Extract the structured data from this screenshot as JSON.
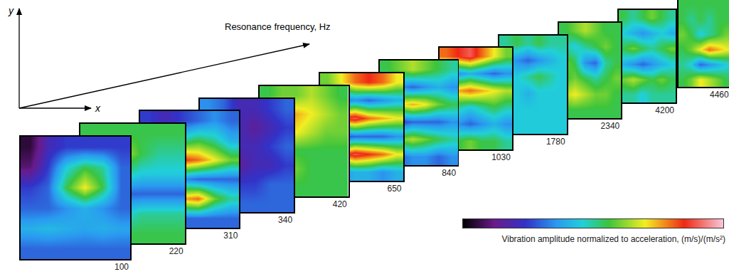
{
  "chart_data": {
    "type": "heatmap",
    "tick_labels": false,
    "x_label": "x",
    "y_label": "y",
    "depth_label": "Resonance frequency, Hz",
    "colorbar_label": "Vibration amplitude normalized to acceleration, (m/s)/(m/s²)",
    "color_range": [
      0,
      1
    ],
    "colorscale": [
      [
        0,
        "#000000"
      ],
      [
        0.12,
        "#6a1a8a"
      ],
      [
        0.24,
        "#3232c8"
      ],
      [
        0.36,
        "#2a9af0"
      ],
      [
        0.46,
        "#20d0d8"
      ],
      [
        0.56,
        "#3cc43c"
      ],
      [
        0.7,
        "#f2ee22"
      ],
      [
        0.85,
        "#f02814"
      ],
      [
        1,
        "#f8c8d8"
      ]
    ],
    "panels": [
      {
        "frequency": 100,
        "cells": [
          [
            0.05,
            0.2,
            0.25,
            0.25,
            0.25,
            0.25
          ],
          [
            0.1,
            0.25,
            0.45,
            0.55,
            0.5,
            0.3
          ],
          [
            0.25,
            0.3,
            0.55,
            0.7,
            0.55,
            0.3
          ],
          [
            0.3,
            0.3,
            0.35,
            0.4,
            0.35,
            0.3
          ],
          [
            0.4,
            0.42,
            0.4,
            0.38,
            0.4,
            0.38
          ],
          [
            0.3,
            0.3,
            0.3,
            0.3,
            0.3,
            0.3
          ]
        ]
      },
      {
        "frequency": 220,
        "cells": [
          [
            0.55,
            0.55,
            0.55,
            0.55,
            0.55,
            0.55
          ],
          [
            0.85,
            0.8,
            0.65,
            0.55,
            0.5,
            0.5
          ],
          [
            0.6,
            0.55,
            0.5,
            0.45,
            0.45,
            0.45
          ],
          [
            0.3,
            0.25,
            0.3,
            0.3,
            0.3,
            0.3
          ],
          [
            0.1,
            0.3,
            0.45,
            0.5,
            0.5,
            0.5
          ],
          [
            0.55,
            0.55,
            0.55,
            0.55,
            0.55,
            0.55
          ]
        ]
      },
      {
        "frequency": 310,
        "cells": [
          [
            0.25,
            0.2,
            0.25,
            0.3,
            0.35,
            0.3
          ],
          [
            0.35,
            0.4,
            0.5,
            0.55,
            0.5,
            0.4
          ],
          [
            0.7,
            0.8,
            0.85,
            0.8,
            0.7,
            0.6
          ],
          [
            0.35,
            0.3,
            0.35,
            0.3,
            0.3,
            0.3
          ],
          [
            0.55,
            0.6,
            0.75,
            0.8,
            0.6,
            0.5
          ],
          [
            0.3,
            0.3,
            0.3,
            0.3,
            0.3,
            0.3
          ]
        ]
      },
      {
        "frequency": 340,
        "cells": [
          [
            0.35,
            0.3,
            0.2,
            0.2,
            0.25,
            0.3
          ],
          [
            0.25,
            0.2,
            0.2,
            0.15,
            0.2,
            0.25
          ],
          [
            0.3,
            0.25,
            0.2,
            0.2,
            0.25,
            0.3
          ],
          [
            0.25,
            0.2,
            0.15,
            0.2,
            0.2,
            0.25
          ],
          [
            0.3,
            0.3,
            0.25,
            0.25,
            0.3,
            0.3
          ],
          [
            0.3,
            0.3,
            0.3,
            0.3,
            0.3,
            0.3
          ]
        ]
      },
      {
        "frequency": 420,
        "cells": [
          [
            0.55,
            0.6,
            0.6,
            0.65,
            0.6,
            0.55
          ],
          [
            0.7,
            0.8,
            0.75,
            0.7,
            0.65,
            0.6
          ],
          [
            0.65,
            0.7,
            0.7,
            0.65,
            0.6,
            0.6
          ],
          [
            0.55,
            0.6,
            0.55,
            0.55,
            0.55,
            0.55
          ],
          [
            0.6,
            0.65,
            0.6,
            0.55,
            0.55,
            0.55
          ],
          [
            0.55,
            0.55,
            0.55,
            0.55,
            0.55,
            0.55
          ]
        ]
      },
      {
        "frequency": 650,
        "cells": [
          [
            0.6,
            0.7,
            0.8,
            0.85,
            0.8,
            0.7
          ],
          [
            0.35,
            0.3,
            0.35,
            0.3,
            0.35,
            0.4
          ],
          [
            0.75,
            0.85,
            0.9,
            0.8,
            0.75,
            0.7
          ],
          [
            0.3,
            0.25,
            0.3,
            0.3,
            0.3,
            0.35
          ],
          [
            0.7,
            0.8,
            0.9,
            0.85,
            0.8,
            0.7
          ],
          [
            0.4,
            0.35,
            0.4,
            0.4,
            0.35,
            0.4
          ]
        ]
      },
      {
        "frequency": 840,
        "cells": [
          [
            0.55,
            0.6,
            0.65,
            0.6,
            0.55,
            0.5
          ],
          [
            0.3,
            0.35,
            0.3,
            0.35,
            0.4,
            0.35
          ],
          [
            0.6,
            0.7,
            0.75,
            0.7,
            0.6,
            0.55
          ],
          [
            0.1,
            0.25,
            0.3,
            0.3,
            0.3,
            0.35
          ],
          [
            0.55,
            0.6,
            0.65,
            0.6,
            0.55,
            0.5
          ],
          [
            0.35,
            0.3,
            0.35,
            0.35,
            0.3,
            0.35
          ]
        ]
      },
      {
        "frequency": 1030,
        "cells": [
          [
            0.8,
            0.85,
            0.9,
            0.8,
            0.7,
            0.6
          ],
          [
            0.3,
            0.35,
            0.4,
            0.35,
            0.3,
            0.35
          ],
          [
            0.7,
            0.75,
            0.8,
            0.75,
            0.7,
            0.65
          ],
          [
            0.55,
            0.5,
            0.45,
            0.5,
            0.55,
            0.5
          ],
          [
            0.3,
            0.35,
            0.3,
            0.35,
            0.4,
            0.35
          ],
          [
            0.55,
            0.55,
            0.6,
            0.55,
            0.55,
            0.5
          ]
        ]
      },
      {
        "frequency": 1780,
        "cells": [
          [
            0.5,
            0.55,
            0.5,
            0.55,
            0.5,
            0.5
          ],
          [
            0.4,
            0.35,
            0.3,
            0.35,
            0.4,
            0.45
          ],
          [
            0.5,
            0.45,
            0.5,
            0.55,
            0.5,
            0.45
          ],
          [
            0.45,
            0.45,
            0.4,
            0.45,
            0.45,
            0.45
          ],
          [
            0.45,
            0.45,
            0.45,
            0.45,
            0.45,
            0.45
          ],
          [
            0.45,
            0.45,
            0.45,
            0.45,
            0.45,
            0.45
          ]
        ]
      },
      {
        "frequency": 2340,
        "cells": [
          [
            0.55,
            0.6,
            0.65,
            0.6,
            0.55,
            0.55
          ],
          [
            0.5,
            0.45,
            0.5,
            0.55,
            0.6,
            0.55
          ],
          [
            0.6,
            0.55,
            0.35,
            0.3,
            0.5,
            0.55
          ],
          [
            0.55,
            0.6,
            0.55,
            0.5,
            0.55,
            0.6
          ],
          [
            0.65,
            0.7,
            0.65,
            0.6,
            0.6,
            0.55
          ],
          [
            0.55,
            0.55,
            0.55,
            0.55,
            0.55,
            0.55
          ]
        ]
      },
      {
        "frequency": 4200,
        "cells": [
          [
            0.55,
            0.5,
            0.55,
            0.6,
            0.55,
            0.5
          ],
          [
            0.45,
            0.4,
            0.35,
            0.4,
            0.45,
            0.4
          ],
          [
            0.55,
            0.6,
            0.55,
            0.5,
            0.55,
            0.6
          ],
          [
            0.4,
            0.35,
            0.3,
            0.35,
            0.4,
            0.45
          ],
          [
            0.6,
            0.65,
            0.6,
            0.55,
            0.6,
            0.55
          ],
          [
            0.5,
            0.5,
            0.45,
            0.5,
            0.5,
            0.5
          ]
        ]
      },
      {
        "frequency": 4460,
        "cells": [
          [
            0.55,
            0.55,
            0.55,
            0.55,
            0.55,
            0.55
          ],
          [
            0.55,
            0.5,
            0.55,
            0.5,
            0.55,
            0.55
          ],
          [
            0.6,
            0.55,
            0.45,
            0.5,
            0.55,
            0.6
          ],
          [
            0.55,
            0.6,
            0.7,
            0.8,
            0.75,
            0.7
          ],
          [
            0.5,
            0.45,
            0.3,
            0.35,
            0.4,
            0.45
          ],
          [
            0.55,
            0.6,
            0.7,
            0.65,
            0.6,
            0.55
          ]
        ]
      }
    ]
  }
}
